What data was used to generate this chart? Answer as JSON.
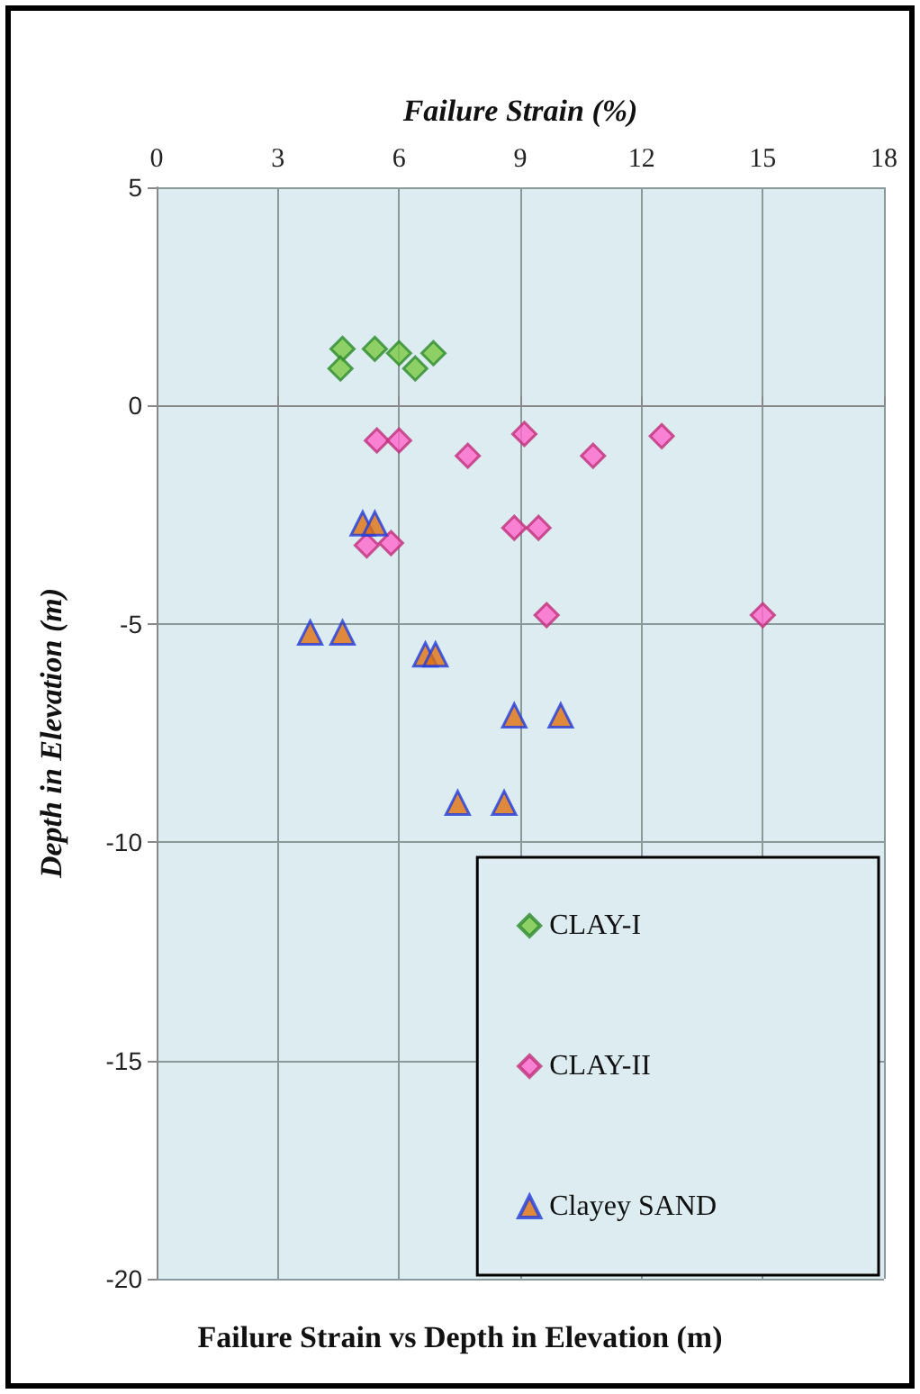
{
  "chart_data": {
    "type": "scatter",
    "title": "Failure Strain vs Depth in Elevation (m)",
    "xlabel": "Failure Strain (%)",
    "ylabel": "Depth in Elevation (m)",
    "xlim": [
      0,
      18
    ],
    "xticks": [
      0,
      3,
      6,
      9,
      12,
      15,
      18
    ],
    "ylim": [
      -20,
      5
    ],
    "yticks": [
      -20,
      -15,
      -10,
      -5,
      0,
      5
    ],
    "grid": true,
    "legend": "bottom right",
    "series": [
      {
        "name": "CLAY-I",
        "color": "#7ac943",
        "marker": "diamond",
        "x": [
          4.6,
          4.55,
          5.4,
          6.0,
          6.4,
          6.85
        ],
        "values": [
          1.3,
          0.85,
          1.3,
          1.2,
          0.85,
          1.2
        ]
      },
      {
        "name": "CLAY-II",
        "color": "#ff66cc",
        "marker": "diamond",
        "x": [
          5.45,
          6.0,
          7.7,
          9.1,
          10.8,
          12.5,
          8.85,
          9.45,
          5.2,
          5.8,
          9.65,
          15.0
        ],
        "values": [
          -0.8,
          -0.8,
          -1.15,
          -0.65,
          -1.15,
          -0.7,
          -2.8,
          -2.8,
          -3.2,
          -3.15,
          -4.8,
          -4.8
        ]
      },
      {
        "name": "Clayey SAND",
        "color": "#e07010",
        "marker": "triangle",
        "x": [
          5.1,
          5.4,
          3.8,
          4.6,
          6.65,
          6.9,
          8.85,
          10.0,
          7.45,
          8.6
        ],
        "values": [
          -2.7,
          -2.7,
          -5.2,
          -5.2,
          -5.7,
          -5.7,
          -7.1,
          -7.1,
          -9.1,
          -9.1
        ]
      }
    ]
  }
}
